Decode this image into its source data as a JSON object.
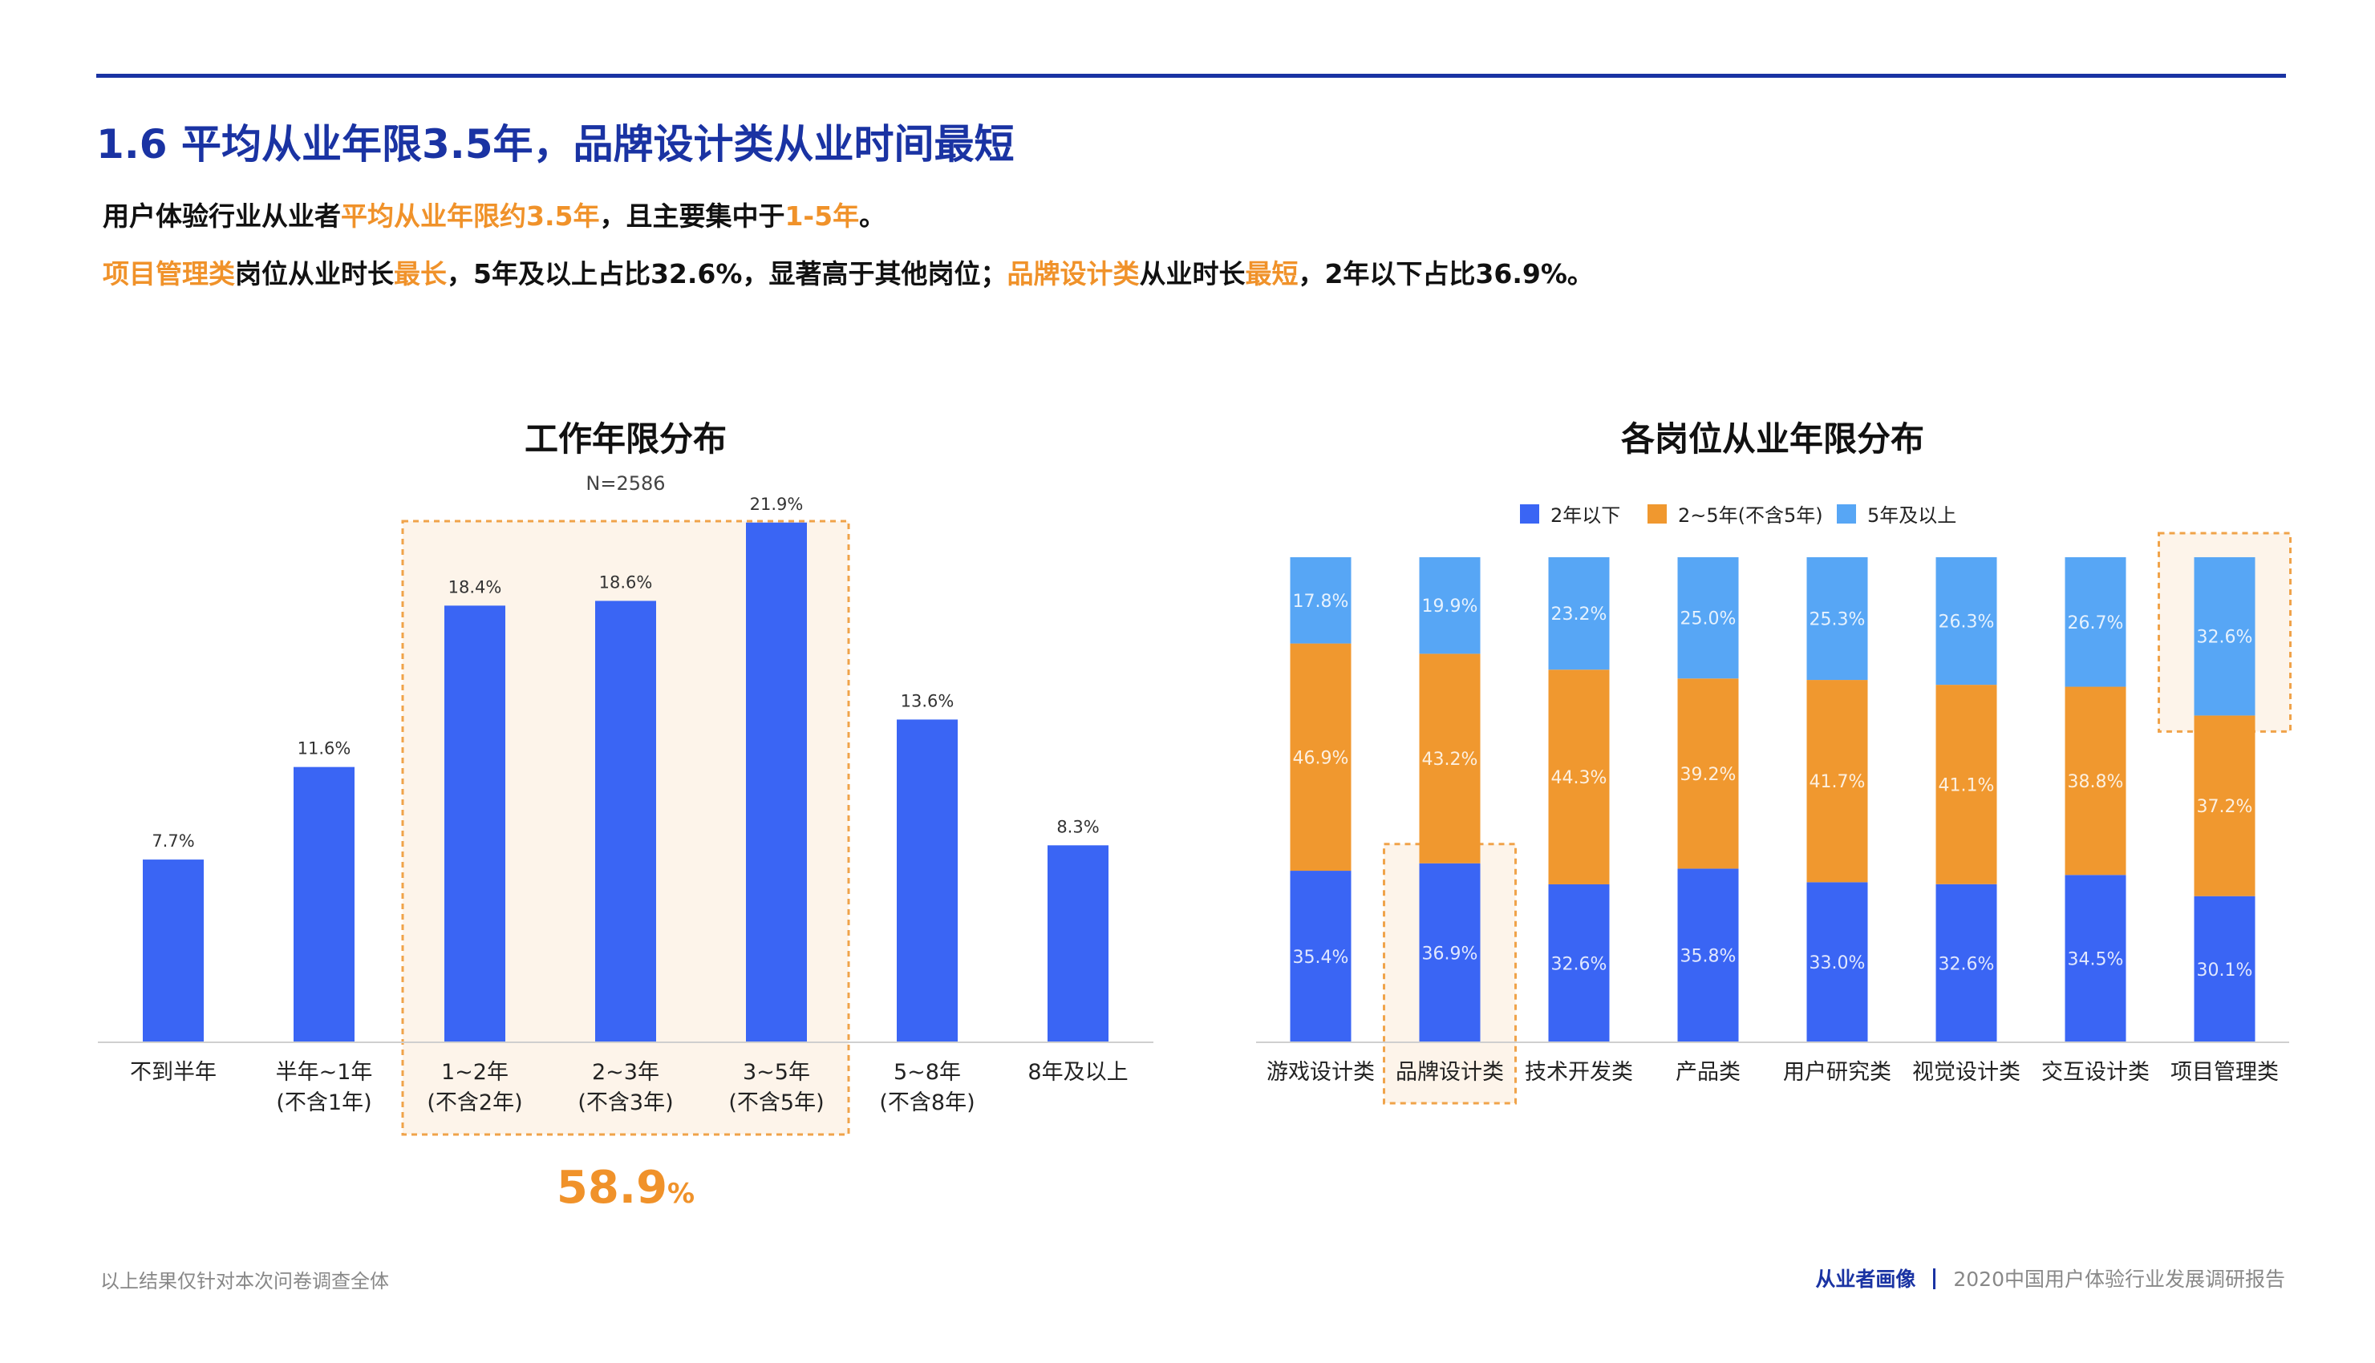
{
  "header": {
    "title": "1.6 平均从业年限3.5年，品牌设计类从业时间最短"
  },
  "summary": {
    "line1": [
      {
        "text": "用户体验行业从业者",
        "hl": false
      },
      {
        "text": "平均从业年限约3.5年",
        "hl": true
      },
      {
        "text": "，且主要集中于",
        "hl": false
      },
      {
        "text": "1-5年",
        "hl": true
      },
      {
        "text": "。",
        "hl": false
      }
    ],
    "line2": [
      {
        "text": "项目管理类",
        "hl": true
      },
      {
        "text": "岗位从业时长",
        "hl": false
      },
      {
        "text": "最长",
        "hl": true
      },
      {
        "text": "，5年及以上占比32.6%，显著高于其他岗位；",
        "hl": false
      },
      {
        "text": "品牌设计类",
        "hl": true
      },
      {
        "text": "从业时长",
        "hl": false
      },
      {
        "text": "最短",
        "hl": true
      },
      {
        "text": "，2年以下占比36.9%。",
        "hl": false
      }
    ]
  },
  "colors": {
    "primary": "#1a33a3",
    "bar_blue": "#3a65f4",
    "orange": "#f0982f",
    "light_blue": "#57a6f5",
    "highlight_fill": "#fdf4ea",
    "highlight_border": "#f0a34a"
  },
  "chart_data": [
    {
      "type": "bar",
      "title": "工作年限分布",
      "subtitle": "N=2586",
      "categories": [
        [
          "不到半年"
        ],
        [
          "半年~1年",
          "(不含1年)"
        ],
        [
          "1~2年",
          "(不含2年)"
        ],
        [
          "2~3年",
          "(不含3年)"
        ],
        [
          "3~5年",
          "(不含5年)"
        ],
        [
          "5~8年",
          "(不含8年)"
        ],
        [
          "8年及以上"
        ]
      ],
      "values": [
        7.7,
        11.6,
        18.4,
        18.6,
        21.9,
        13.6,
        8.3
      ],
      "value_labels": [
        "7.7%",
        "11.6%",
        "18.4%",
        "18.6%",
        "21.9%",
        "13.6%",
        "8.3%"
      ],
      "highlight": {
        "from_index": 2,
        "to_index": 4,
        "total": "58.9",
        "unit": "%"
      },
      "ylim": [
        0,
        25
      ]
    },
    {
      "type": "bar",
      "stacked": true,
      "title": "各岗位从业年限分布",
      "categories": [
        "游戏设计类",
        "品牌设计类",
        "技术开发类",
        "产品类",
        "用户研究类",
        "视觉设计类",
        "交互设计类",
        "项目管理类"
      ],
      "series": [
        {
          "name": "2年以下",
          "values": [
            35.4,
            36.9,
            32.6,
            35.8,
            33.0,
            32.6,
            34.5,
            30.1
          ],
          "labels": [
            "35.4%",
            "36.9%",
            "32.6%",
            "35.8%",
            "33.0%",
            "32.6%",
            "34.5%",
            "30.1%"
          ]
        },
        {
          "name": "2~5年(不含5年)",
          "values": [
            46.9,
            43.2,
            44.3,
            39.2,
            41.7,
            41.1,
            38.8,
            37.2
          ],
          "labels": [
            "46.9%",
            "43.2%",
            "44.3%",
            "39.2%",
            "41.7%",
            "41.1%",
            "38.8%",
            "37.2%"
          ]
        },
        {
          "name": "5年及以上",
          "values": [
            17.8,
            19.9,
            23.2,
            25.0,
            25.3,
            26.3,
            26.7,
            32.6
          ],
          "labels": [
            "17.8%",
            "19.9%",
            "23.2%",
            "25.0%",
            "25.3%",
            "26.3%",
            "26.7%",
            "32.6%"
          ]
        }
      ],
      "highlights": [
        {
          "category_index": 1,
          "series_index": 0
        },
        {
          "category_index": 7,
          "series_index": 2
        }
      ],
      "legend": "top-center",
      "ylim": [
        0,
        100
      ]
    }
  ],
  "footer": {
    "note": "以上结果仅针对本次问卷调查全体",
    "section": "从业者画像",
    "report": "2020中国用户体验行业发展调研报告"
  }
}
